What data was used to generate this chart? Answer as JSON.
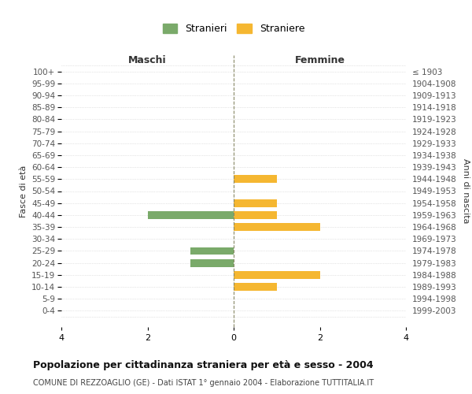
{
  "age_groups": [
    "100+",
    "95-99",
    "90-94",
    "85-89",
    "80-84",
    "75-79",
    "70-74",
    "65-69",
    "60-64",
    "55-59",
    "50-54",
    "45-49",
    "40-44",
    "35-39",
    "30-34",
    "25-29",
    "20-24",
    "15-19",
    "10-14",
    "5-9",
    "0-4"
  ],
  "birth_years": [
    "≤ 1903",
    "1904-1908",
    "1909-1913",
    "1914-1918",
    "1919-1923",
    "1924-1928",
    "1929-1933",
    "1934-1938",
    "1939-1943",
    "1944-1948",
    "1949-1953",
    "1954-1958",
    "1959-1963",
    "1964-1968",
    "1969-1973",
    "1974-1978",
    "1979-1983",
    "1984-1988",
    "1989-1993",
    "1994-1998",
    "1999-2003"
  ],
  "males": [
    0,
    0,
    0,
    0,
    0,
    0,
    0,
    0,
    0,
    0,
    0,
    0,
    -2,
    0,
    0,
    -1,
    -1,
    0,
    0,
    0,
    0
  ],
  "females": [
    0,
    0,
    0,
    0,
    0,
    0,
    0,
    0,
    0,
    1,
    0,
    1,
    1,
    2,
    0,
    0,
    0,
    2,
    1,
    0,
    0
  ],
  "male_color": "#7aaa6a",
  "female_color": "#f5b731",
  "title": "Popolazione per cittadinanza straniera per età e sesso - 2004",
  "subtitle": "COMUNE DI REZZOAGLIO (GE) - Dati ISTAT 1° gennaio 2004 - Elaborazione TUTTITALIA.IT",
  "xlabel_left": "Maschi",
  "xlabel_right": "Femmine",
  "ylabel_left": "Fasce di età",
  "ylabel_right": "Anni di nascita",
  "legend_stranieri": "Stranieri",
  "legend_straniere": "Straniere",
  "xlim": 4,
  "background_color": "#ffffff",
  "grid_color": "#cccccc"
}
